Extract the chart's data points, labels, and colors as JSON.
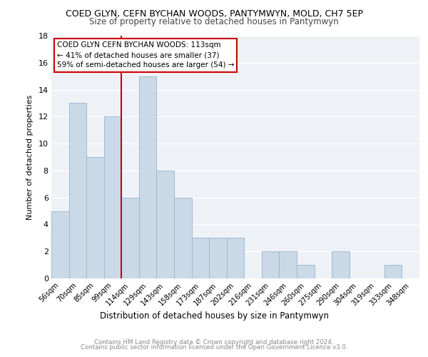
{
  "title1": "COED GLYN, CEFN BYCHAN WOODS, PANTYMWYN, MOLD, CH7 5EP",
  "title2": "Size of property relative to detached houses in Pantymwyn",
  "xlabel": "Distribution of detached houses by size in Pantymwyn",
  "ylabel": "Number of detached properties",
  "categories": [
    "56sqm",
    "70sqm",
    "85sqm",
    "99sqm",
    "114sqm",
    "129sqm",
    "143sqm",
    "158sqm",
    "173sqm",
    "187sqm",
    "202sqm",
    "216sqm",
    "231sqm",
    "246sqm",
    "260sqm",
    "275sqm",
    "290sqm",
    "304sqm",
    "319sqm",
    "333sqm",
    "348sqm"
  ],
  "values": [
    5,
    13,
    9,
    12,
    6,
    15,
    8,
    6,
    3,
    3,
    3,
    0,
    2,
    2,
    1,
    0,
    2,
    0,
    0,
    1,
    0
  ],
  "bar_color": "#c9d9e8",
  "bar_edge_color": "#a0b8d0",
  "vline_index": 4,
  "vline_color": "#cc0000",
  "annotation_text": "COED GLYN CEFN BYCHAN WOODS: 113sqm\n← 41% of detached houses are smaller (37)\n59% of semi-detached houses are larger (54) →",
  "annotation_box_color": "#ffffff",
  "annotation_box_edge": "#cc0000",
  "ylim": [
    0,
    18
  ],
  "yticks": [
    0,
    2,
    4,
    6,
    8,
    10,
    12,
    14,
    16,
    18
  ],
  "footnote1": "Contains HM Land Registry data © Crown copyright and database right 2024.",
  "footnote2": "Contains public sector information licensed under the Open Government Licence v3.0.",
  "bg_color": "#eef2f7"
}
